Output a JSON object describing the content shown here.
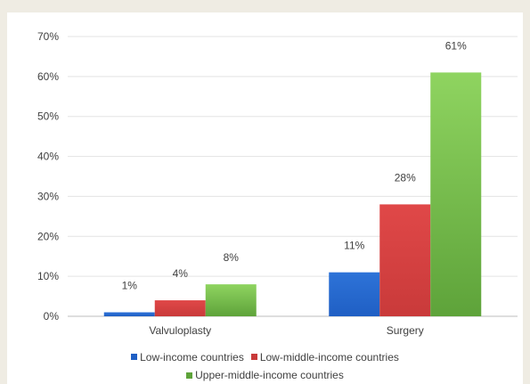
{
  "chart_data": {
    "type": "bar",
    "categories": [
      "Valvuloplasty",
      "Surgery"
    ],
    "series": [
      {
        "name": "Low-income countries",
        "values": [
          1,
          11
        ],
        "labels": [
          "1%",
          "11%"
        ],
        "color": "#1f5fc4",
        "color_dark": "#2e73d8"
      },
      {
        "name": "Low-middle-income countries",
        "values": [
          4,
          28
        ],
        "labels": [
          "4%",
          "28%"
        ],
        "color": "#c93a3a",
        "color_dark": "#e04848"
      },
      {
        "name": "Upper-middle-income countries",
        "values": [
          8,
          61
        ],
        "labels": [
          "8%",
          "61%"
        ],
        "color": "#5ea33a",
        "color_dark": "#8fd460"
      }
    ],
    "yticks": [
      "0%",
      "10%",
      "20%",
      "30%",
      "40%",
      "50%",
      "60%",
      "70%"
    ],
    "ylim": [
      0,
      70
    ],
    "grid": true,
    "legend_position": "bottom",
    "title": "",
    "xlabel": "",
    "ylabel": ""
  }
}
